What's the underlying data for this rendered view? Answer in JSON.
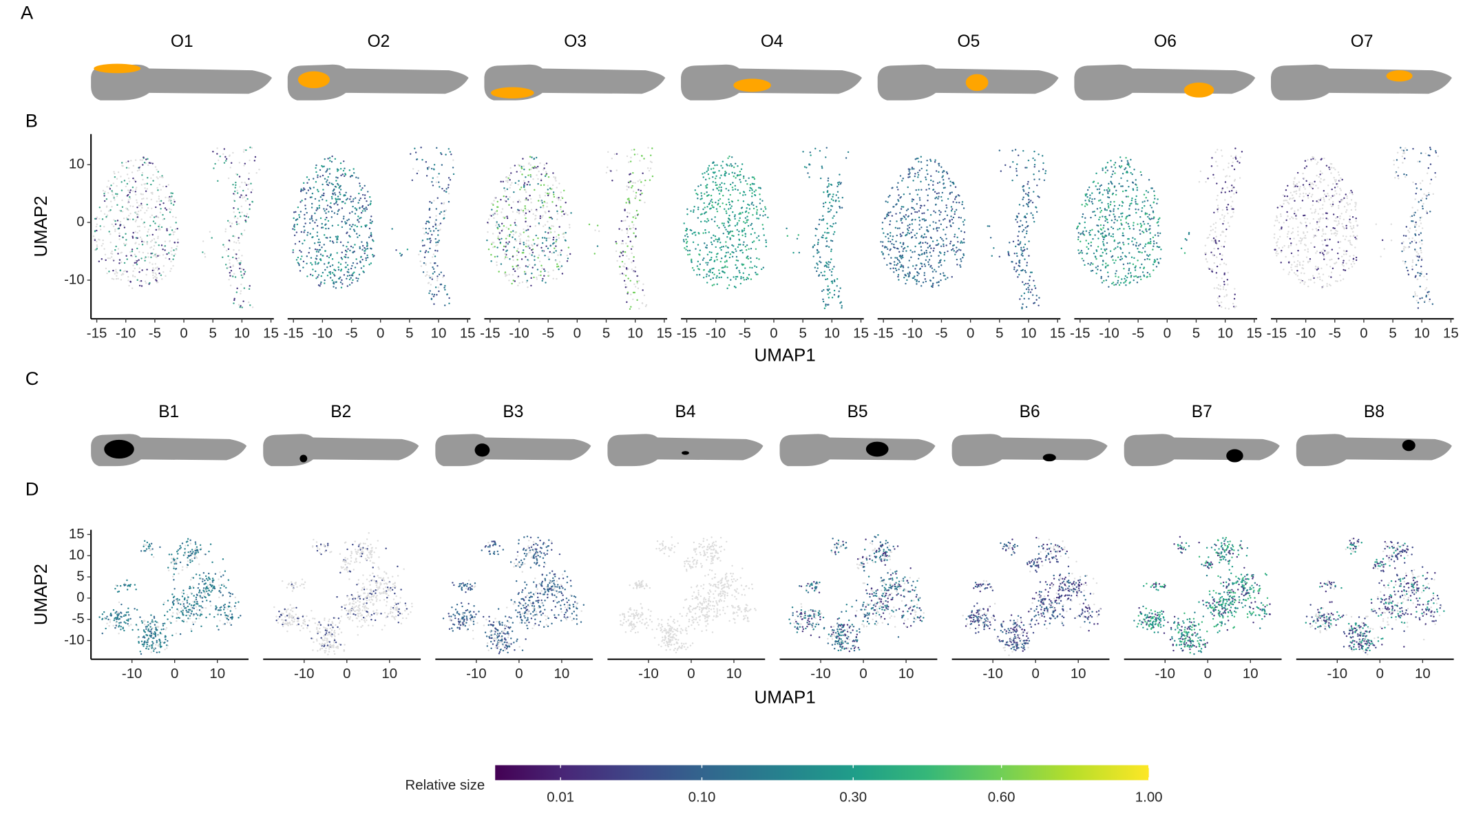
{
  "panel_labels": [
    "A",
    "B",
    "C",
    "D"
  ],
  "row_a": {
    "titles": [
      "O1",
      "O2",
      "O3",
      "O4",
      "O5",
      "O6",
      "O7"
    ],
    "highlight_color": "#ffa500"
  },
  "row_b": {
    "type": "scatter",
    "xlabel": "UMAP1",
    "ylabel": "UMAP2",
    "xlim": [
      -16,
      15.5
    ],
    "ylim": [
      -16.7,
      15.3
    ],
    "xticks": [
      -15,
      -10,
      -5,
      0,
      5,
      10,
      15
    ],
    "yticks": [
      -10,
      0,
      10
    ]
  },
  "row_c": {
    "titles": [
      "B1",
      "B2",
      "B3",
      "B4",
      "B5",
      "B6",
      "B7",
      "B8"
    ],
    "highlight_color": "#000000"
  },
  "row_d": {
    "type": "scatter",
    "xlabel": "UMAP1",
    "ylabel": "UMAP2",
    "xlim": [
      -19.6,
      17.3
    ],
    "ylim": [
      -14.4,
      16.1
    ],
    "xticks": [
      -10,
      0,
      10
    ],
    "yticks": [
      -10,
      -5,
      0,
      5,
      10,
      15
    ]
  },
  "colorbar": {
    "title": "Relative size",
    "scale": "sqrt",
    "lim": [
      0,
      1
    ],
    "ticks": [
      {
        "value": 0.01,
        "label": "0.01"
      },
      {
        "value": 0.1,
        "label": "0.10"
      },
      {
        "value": 0.3,
        "label": "0.30"
      },
      {
        "value": 0.6,
        "label": "0.60"
      },
      {
        "value": 1,
        "label": "1.00"
      }
    ]
  }
}
